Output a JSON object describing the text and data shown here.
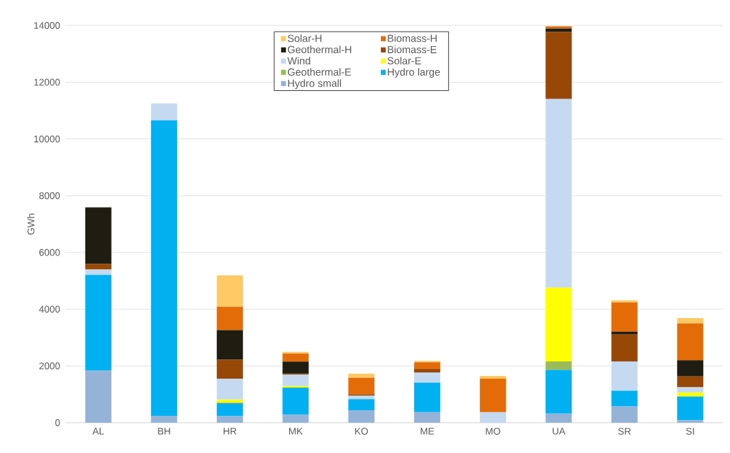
{
  "chart_data": {
    "type": "bar",
    "stacked": true,
    "ylabel": "GWh",
    "categories": [
      "AL",
      "BH",
      "HR",
      "MK",
      "KO",
      "ME",
      "MO",
      "UA",
      "SR",
      "SI"
    ],
    "series": [
      {
        "name": "Hydro small",
        "color": "#95b3d7",
        "values": [
          1830,
          240,
          230,
          280,
          430,
          370,
          0,
          320,
          570,
          90
        ]
      },
      {
        "name": "Hydro large",
        "color": "#00b0f0",
        "values": [
          3380,
          10420,
          450,
          960,
          400,
          1040,
          0,
          1540,
          560,
          830
        ]
      },
      {
        "name": "Geothermal-E",
        "color": "#9bbb59",
        "values": [
          0,
          0,
          30,
          0,
          0,
          0,
          0,
          300,
          0,
          0
        ]
      },
      {
        "name": "Solar-E",
        "color": "#ffff00",
        "values": [
          0,
          0,
          100,
          50,
          0,
          0,
          0,
          2600,
          0,
          140
        ]
      },
      {
        "name": "Wind",
        "color": "#c5d9f1",
        "values": [
          190,
          590,
          740,
          400,
          120,
          360,
          370,
          6650,
          1030,
          190
        ]
      },
      {
        "name": "Biomass-E",
        "color": "#974706",
        "values": [
          190,
          0,
          670,
          40,
          50,
          120,
          0,
          2360,
          950,
          380
        ]
      },
      {
        "name": "Geothermal-H",
        "color": "#1f1c12",
        "values": [
          2000,
          0,
          1040,
          420,
          0,
          0,
          0,
          120,
          100,
          570
        ]
      },
      {
        "name": "Biomass-H",
        "color": "#e36c09",
        "values": [
          0,
          0,
          830,
          290,
          580,
          240,
          1180,
          80,
          1030,
          1300
        ]
      },
      {
        "name": "Solar-H",
        "color": "#ffc966",
        "values": [
          0,
          0,
          1100,
          50,
          150,
          50,
          100,
          0,
          70,
          190
        ]
      }
    ],
    "ylim": [
      0,
      14000
    ],
    "yticks": [
      0,
      2000,
      4000,
      6000,
      8000,
      10000,
      12000,
      14000
    ],
    "grid": "y",
    "legend": "top"
  }
}
